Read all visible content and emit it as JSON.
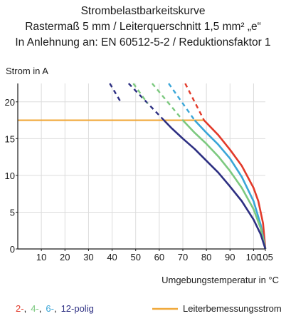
{
  "title_lines": [
    "Strombelastbarkeitskurve",
    "Rastermaß 5 mm / Leiterquerschnitt 1,5 mm² „e“",
    "In Anlehnung an: EN 60512-5-2 / Reduktionsfaktor 1"
  ],
  "chart_data": {
    "type": "line",
    "title": "Strombelastbarkeitskurve",
    "xlabel": "Umgebungstemperatur in °C",
    "ylabel": "Strom in A",
    "xlim": [
      0,
      105
    ],
    "ylim": [
      0,
      22.5
    ],
    "x_ticks": [
      10,
      20,
      30,
      40,
      50,
      60,
      70,
      80,
      90,
      100,
      105
    ],
    "y_ticks": [
      0,
      5,
      10,
      15,
      20
    ],
    "grid": true,
    "legend_position": "bottom",
    "legend": {
      "poles": [
        {
          "label": "2-",
          "color": "#e23a2a"
        },
        {
          "label": "4-",
          "color": "#7cc97f"
        },
        {
          "label": "6-",
          "color": "#3aa6d8"
        },
        {
          "label": "12-polig",
          "color": "#2d2f82"
        }
      ],
      "separators": [
        ",",
        ",",
        ","
      ],
      "rated_current_label": "Leiterbemessungsstrom"
    },
    "rated_current": {
      "value": 17.5,
      "color": "#f0a83a",
      "x": [
        0,
        79
      ]
    },
    "series": [
      {
        "name": "2-polig",
        "color": "#e23a2a",
        "dashed": [
          [
            71,
            22.5
          ],
          [
            79,
            17.5
          ]
        ],
        "solid": [
          [
            79,
            17.5
          ],
          [
            85,
            15.5
          ],
          [
            90,
            13.5
          ],
          [
            95,
            11.3
          ],
          [
            100,
            8.3
          ],
          [
            102,
            6.5
          ],
          [
            104,
            3.5
          ],
          [
            105,
            0
          ]
        ]
      },
      {
        "name": "6-polig",
        "color": "#3aa6d8",
        "dashed": [
          [
            64,
            22.5
          ],
          [
            75,
            17.5
          ]
        ],
        "solid": [
          [
            75,
            17.5
          ],
          [
            80,
            15.8
          ],
          [
            85,
            14.2
          ],
          [
            90,
            12.3
          ],
          [
            95,
            9.8
          ],
          [
            100,
            6.5
          ],
          [
            103,
            3.3
          ],
          [
            105,
            0
          ]
        ]
      },
      {
        "name": "4-polig",
        "color": "#7cc97f",
        "dashed": [
          [
            57,
            22.5
          ],
          [
            70,
            17.5
          ]
        ],
        "solid": [
          [
            70,
            17.5
          ],
          [
            75,
            15.8
          ],
          [
            80,
            14.3
          ],
          [
            85,
            12.6
          ],
          [
            90,
            10.6
          ],
          [
            95,
            8.3
          ],
          [
            100,
            5.4
          ],
          [
            103,
            2.8
          ],
          [
            105,
            0
          ]
        ]
      },
      {
        "name": "12-polig",
        "color": "#2d2f82",
        "dashed": [
          [
            47,
            22.5
          ],
          [
            62,
            17.5
          ]
        ],
        "solid": [
          [
            62,
            17.5
          ],
          [
            65,
            16.5
          ],
          [
            70,
            15.0
          ],
          [
            75,
            13.6
          ],
          [
            80,
            12.0
          ],
          [
            85,
            10.4
          ],
          [
            90,
            8.5
          ],
          [
            95,
            6.5
          ],
          [
            100,
            4.0
          ],
          [
            103,
            2.0
          ],
          [
            105,
            0
          ]
        ]
      },
      {
        "name": "4-polig",
        "color": "#7cc97f",
        "dashed": [
          [
            49,
            22.5
          ],
          [
            55,
            19.8
          ]
        ],
        "solid": []
      },
      {
        "name": "12-polig",
        "color": "#2d2f82",
        "dashed": [
          [
            39,
            22.5
          ],
          [
            44,
            19.8
          ]
        ],
        "solid": []
      }
    ]
  }
}
